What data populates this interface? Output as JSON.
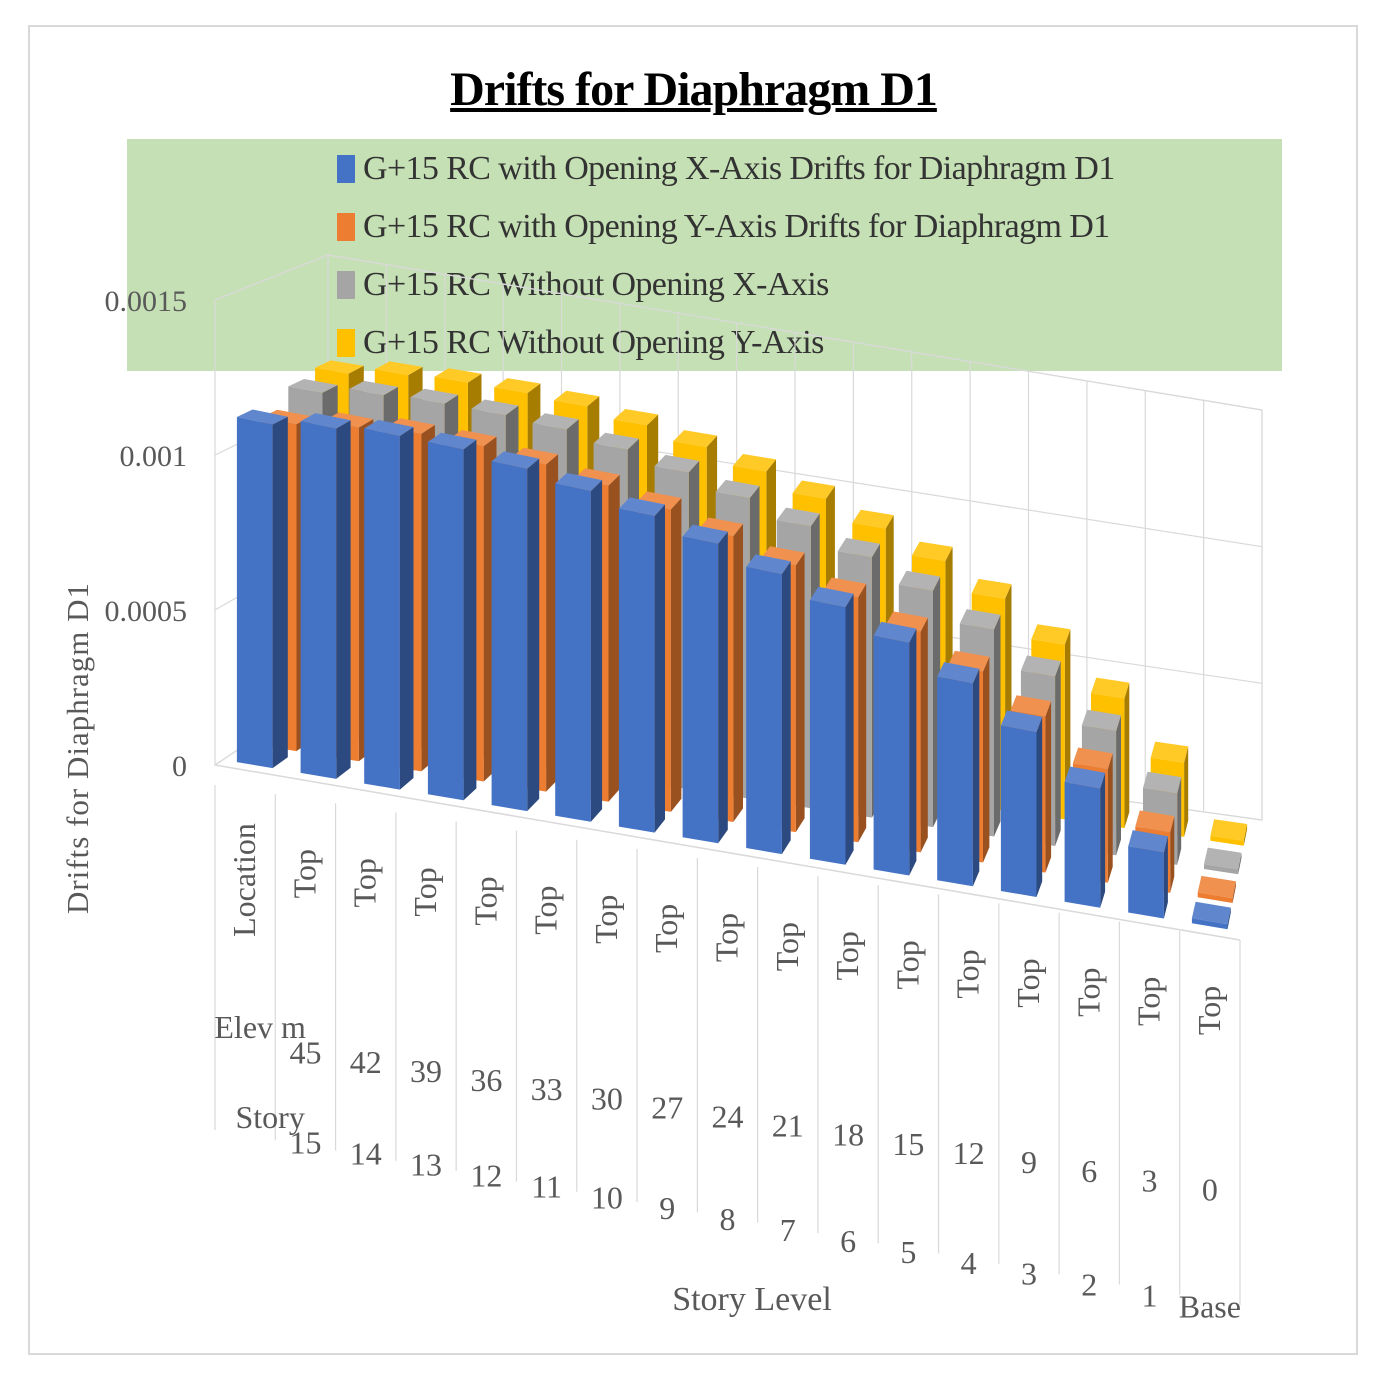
{
  "chart_data": {
    "type": "bar",
    "subtype": "3d-clustered-column",
    "title": "Drifts for Diaphragm D1",
    "ylabel": "Drifts for Diaphragm D1",
    "xlabel": "Story Level",
    "ylim": [
      0,
      0.0015
    ],
    "yticks": [
      "0",
      "0.0005",
      "0.001",
      "0.0015"
    ],
    "category_header": {
      "location": "Location",
      "elev": "Elev m",
      "story": "Story"
    },
    "categories": [
      {
        "location": "Top",
        "elev": "45",
        "story": "15"
      },
      {
        "location": "Top",
        "elev": "42",
        "story": "14"
      },
      {
        "location": "Top",
        "elev": "39",
        "story": "13"
      },
      {
        "location": "Top",
        "elev": "36",
        "story": "12"
      },
      {
        "location": "Top",
        "elev": "33",
        "story": "11"
      },
      {
        "location": "Top",
        "elev": "30",
        "story": "10"
      },
      {
        "location": "Top",
        "elev": "27",
        "story": "9"
      },
      {
        "location": "Top",
        "elev": "24",
        "story": "8"
      },
      {
        "location": "Top",
        "elev": "21",
        "story": "7"
      },
      {
        "location": "Top",
        "elev": "18",
        "story": "6"
      },
      {
        "location": "Top",
        "elev": "15",
        "story": "5"
      },
      {
        "location": "Top",
        "elev": "12",
        "story": "4"
      },
      {
        "location": "Top",
        "elev": "9",
        "story": "3"
      },
      {
        "location": "Top",
        "elev": "6",
        "story": "2"
      },
      {
        "location": "Top",
        "elev": "3",
        "story": "1"
      },
      {
        "location": "Top",
        "elev": "0",
        "story": "Base"
      }
    ],
    "series": [
      {
        "name": "G+15 RC with Opening X-Axis Drifts for Diaphragm D1",
        "color": "#4472c4",
        "values": [
          0.00112,
          0.00115,
          0.00117,
          0.00117,
          0.00115,
          0.00112,
          0.00108,
          0.00103,
          0.00097,
          0.0009,
          0.00082,
          0.00072,
          0.00059,
          0.00043,
          0.00024,
          0
        ]
      },
      {
        "name": "G+15 RC with Opening Y-Axis Drifts for Diaphragm D1",
        "color": "#ed7d31",
        "values": [
          0.00108,
          0.00111,
          0.00113,
          0.00113,
          0.00111,
          0.00108,
          0.00104,
          0.00099,
          0.00093,
          0.00086,
          0.00078,
          0.00068,
          0.00056,
          0.00041,
          0.00022,
          0
        ]
      },
      {
        "name": "G+15 RC Without Opening X-Axis",
        "color": "#a5a5a5",
        "values": [
          0.00114,
          0.00117,
          0.00118,
          0.00118,
          0.00117,
          0.00114,
          0.0011,
          0.00105,
          0.00099,
          0.00092,
          0.00084,
          0.00074,
          0.00061,
          0.00045,
          0.00026,
          0
        ]
      },
      {
        "name": "G+15 RC Without Opening Y-Axis",
        "color": "#ffc000",
        "values": [
          0.00116,
          0.00119,
          0.0012,
          0.0012,
          0.00119,
          0.00116,
          0.00112,
          0.00107,
          0.00101,
          0.00094,
          0.00086,
          0.00076,
          0.00063,
          0.00047,
          0.00027,
          0
        ]
      }
    ],
    "legend_position": "top"
  }
}
